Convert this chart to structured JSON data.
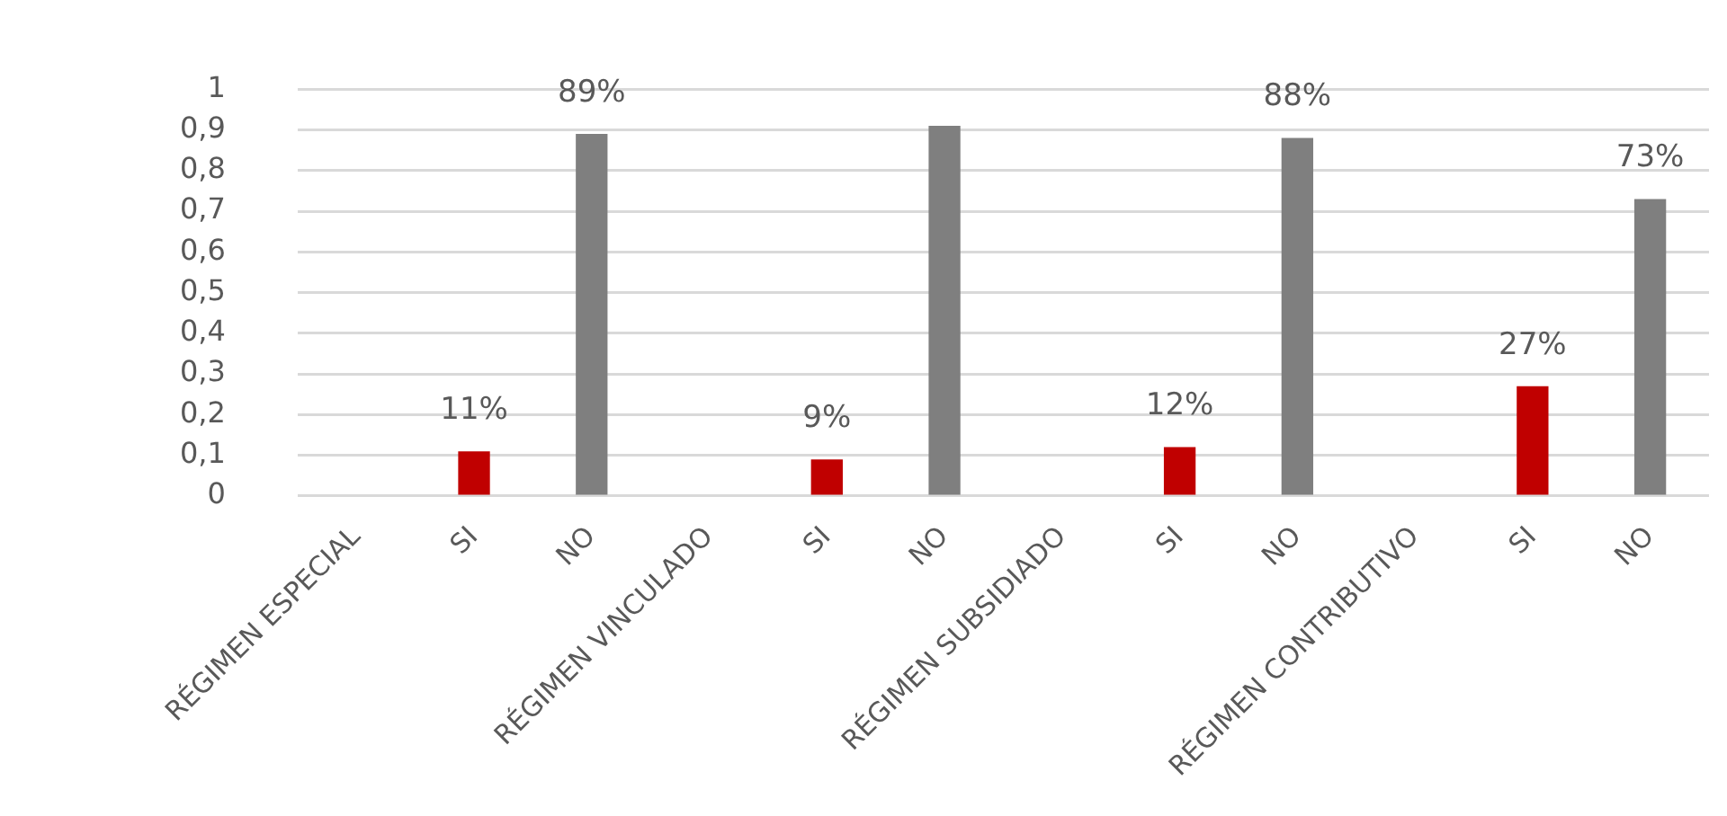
{
  "chart_data": {
    "type": "bar",
    "categories": [
      "RÉGIMEN ESPECIAL",
      "SI",
      "NO",
      "RÉGIMEN VINCULADO",
      "SI",
      "NO",
      "RÉGIMEN SUBSIDIADO",
      "SI",
      "NO",
      "RÉGIMEN CONTRIBUTIVO",
      "SI",
      "NO"
    ],
    "values": [
      null,
      0.11,
      0.89,
      null,
      0.09,
      0.91,
      null,
      0.12,
      0.88,
      null,
      0.27,
      0.73
    ],
    "colors": [
      "#c00000",
      "#c00000",
      "#7f7f7f",
      "#c00000",
      "#c00000",
      "#7f7f7f",
      "#c00000",
      "#c00000",
      "#7f7f7f",
      "#c00000",
      "#c00000",
      "#7f7f7f"
    ],
    "value_labels": [
      null,
      "11%",
      "89%",
      null,
      "9%",
      null,
      null,
      "12%",
      "88%",
      null,
      "27%",
      "73%"
    ],
    "ylim": [
      0,
      1
    ],
    "yticks": [
      0,
      {
        "value": 0.1,
        "label": "0,1"
      },
      {
        "value": 0.2,
        "label": "0,2"
      },
      {
        "value": 0.3,
        "label": "0,3"
      },
      {
        "value": 0.4,
        "label": "0,4"
      },
      {
        "value": 0.5,
        "label": "0,5"
      },
      {
        "value": 0.6,
        "label": "0,6"
      },
      {
        "value": 0.7,
        "label": "0,7"
      },
      {
        "value": 0.8,
        "label": "0,8"
      },
      {
        "value": 0.9,
        "label": "0,9"
      },
      1
    ],
    "grid": "y"
  }
}
